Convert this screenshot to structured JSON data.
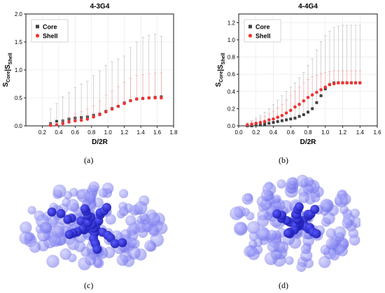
{
  "figure": {
    "panel_labels": [
      "(a)",
      "(b)",
      "(c)",
      "(d)"
    ]
  },
  "colors": {
    "core": "#404040",
    "shell": "#ee3333",
    "core_error": "#b8b8b8",
    "shell_error": "#f4a0a0",
    "molecule_light": "#7070e8",
    "molecule_dark": "#1e1eb4"
  },
  "chart_data": [
    {
      "type": "scatter",
      "title": "4-3G4",
      "xlabel": "D/2R",
      "ylabel": "S_Core|S_Shell",
      "xlim": [
        0.0,
        1.8
      ],
      "ylim": [
        0.0,
        2.0
      ],
      "xticks": [
        "0.2",
        "0.4",
        "0.6",
        "0.8",
        "1.0",
        "1.2",
        "1.4",
        "1.6",
        "1.8"
      ],
      "yticks": [
        "0.0",
        "0.5",
        "1.0",
        "1.5",
        "2.0"
      ],
      "grid": true,
      "legend": "top-left",
      "x": [
        0.3,
        0.375,
        0.45,
        0.525,
        0.6,
        0.675,
        0.75,
        0.825,
        0.9,
        0.975,
        1.05,
        1.125,
        1.2,
        1.275,
        1.35,
        1.425,
        1.5,
        1.575,
        1.65
      ],
      "series": [
        {
          "name": "Core",
          "marker": "square",
          "values": [
            0.04,
            0.08,
            0.09,
            0.12,
            0.14,
            0.15,
            0.16,
            0.19,
            0.21,
            0.26,
            0.31,
            0.35,
            0.41,
            0.45,
            0.48,
            0.49,
            0.5,
            0.51,
            0.52
          ],
          "error_upper": [
            0.3,
            0.4,
            0.52,
            0.6,
            0.68,
            0.75,
            0.8,
            0.9,
            0.98,
            1.08,
            1.15,
            1.2,
            1.25,
            1.4,
            1.5,
            1.58,
            1.62,
            1.64,
            1.6
          ]
        },
        {
          "name": "Shell",
          "marker": "circle",
          "values": [
            0.01,
            0.02,
            0.04,
            0.07,
            0.09,
            0.1,
            0.12,
            0.16,
            0.2,
            0.25,
            0.3,
            0.35,
            0.4,
            0.45,
            0.48,
            0.49,
            0.5,
            0.5,
            0.5
          ],
          "error_upper": [
            0.04,
            0.06,
            0.1,
            0.15,
            0.22,
            0.26,
            0.3,
            0.36,
            0.45,
            0.55,
            0.62,
            0.7,
            0.78,
            0.85,
            0.9,
            0.92,
            0.93,
            0.94,
            0.95
          ]
        }
      ]
    },
    {
      "type": "scatter",
      "title": "4-4G4",
      "xlabel": "D/2R",
      "ylabel": "S_Core|S_Shell",
      "xlim": [
        0.0,
        1.6
      ],
      "ylim": [
        0.0,
        1.3
      ],
      "xticks": [
        "0.0",
        "0.2",
        "0.4",
        "0.6",
        "0.8",
        "1.0",
        "1.2",
        "1.4",
        "1.6"
      ],
      "yticks": [
        "0.0",
        "0.2",
        "0.4",
        "0.6",
        "0.8",
        "1.0",
        "1.2"
      ],
      "grid": true,
      "legend": "top-left",
      "x": [
        0.1,
        0.15,
        0.2,
        0.25,
        0.3,
        0.35,
        0.4,
        0.45,
        0.5,
        0.55,
        0.6,
        0.65,
        0.7,
        0.75,
        0.8,
        0.85,
        0.9,
        0.95,
        1.0,
        1.05,
        1.1,
        1.15,
        1.2,
        1.25,
        1.3,
        1.35,
        1.4
      ],
      "series": [
        {
          "name": "Core",
          "marker": "square",
          "values": [
            0.0,
            0.0,
            0.01,
            0.01,
            0.02,
            0.03,
            0.04,
            0.05,
            0.06,
            0.07,
            0.08,
            0.09,
            0.11,
            0.13,
            0.16,
            0.2,
            0.27,
            0.35,
            0.43,
            0.48,
            0.5,
            0.5,
            0.5,
            0.5,
            0.5,
            0.5,
            0.5
          ],
          "error_upper": [
            0.04,
            0.06,
            0.09,
            0.12,
            0.16,
            0.2,
            0.25,
            0.3,
            0.35,
            0.4,
            0.45,
            0.5,
            0.56,
            0.62,
            0.7,
            0.78,
            0.88,
            0.98,
            1.05,
            1.1,
            1.14,
            1.16,
            1.17,
            1.17,
            1.17,
            1.17,
            1.17
          ]
        },
        {
          "name": "Shell",
          "marker": "circle",
          "values": [
            0.01,
            0.02,
            0.03,
            0.04,
            0.05,
            0.07,
            0.08,
            0.1,
            0.12,
            0.15,
            0.18,
            0.22,
            0.25,
            0.29,
            0.33,
            0.36,
            0.39,
            0.42,
            0.45,
            0.48,
            0.49,
            0.5,
            0.5,
            0.5,
            0.5,
            0.5,
            0.5
          ],
          "error_upper": [
            0.03,
            0.05,
            0.07,
            0.09,
            0.11,
            0.14,
            0.17,
            0.21,
            0.25,
            0.3,
            0.35,
            0.4,
            0.45,
            0.5,
            0.54,
            0.57,
            0.59,
            0.61,
            0.62,
            0.63,
            0.64,
            0.64,
            0.64,
            0.64,
            0.64,
            0.64,
            0.64
          ]
        }
      ]
    }
  ]
}
